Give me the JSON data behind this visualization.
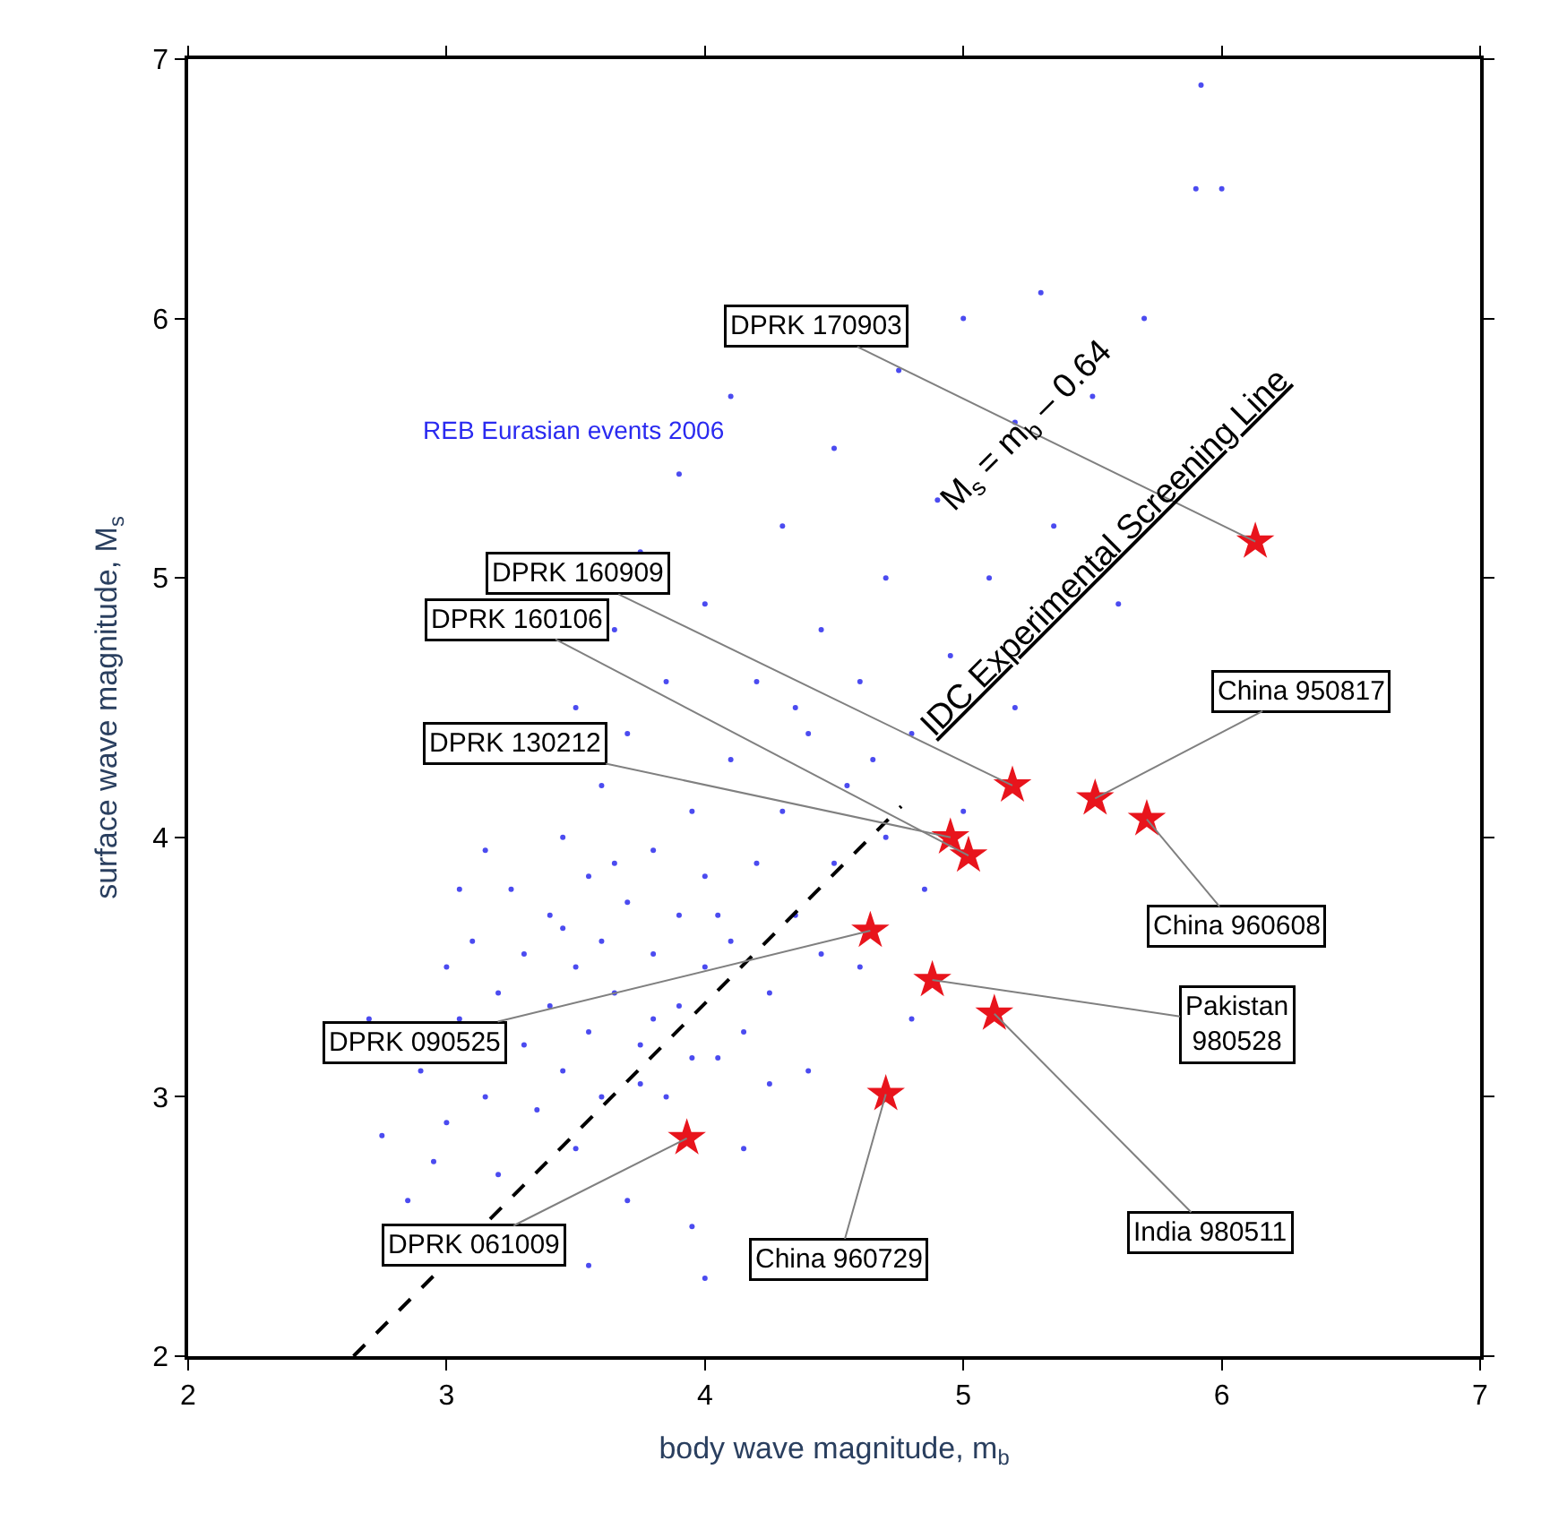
{
  "chart_data": {
    "type": "scatter",
    "xlabel": "body wave magnitude, m$_{b}$",
    "ylabel": "surface wave magnitude, M$_{s}$",
    "xlim": [
      2,
      7
    ],
    "ylim": [
      2,
      7
    ],
    "xticks": [
      2,
      3,
      4,
      5,
      6,
      7
    ],
    "yticks": [
      2,
      3,
      4,
      5,
      6,
      7
    ],
    "series": [
      {
        "color": "#4b4bf0",
        "marker": "circle",
        "x": [
          2.75,
          2.9,
          3.0,
          3.05,
          3.1,
          3.15,
          3.2,
          3.2,
          3.25,
          3.3,
          3.3,
          3.35,
          3.4,
          3.4,
          3.45,
          3.45,
          3.5,
          3.5,
          3.55,
          3.55,
          3.6,
          3.6,
          3.6,
          3.65,
          3.7,
          3.7,
          3.7,
          3.75,
          3.8,
          3.8,
          3.85,
          3.85,
          3.9,
          3.9,
          3.95,
          3.95,
          4.0,
          4.0,
          4.0,
          4.05,
          4.1,
          4.1,
          4.15,
          4.2,
          4.2,
          4.25,
          4.3,
          4.3,
          4.35,
          4.4,
          4.4,
          4.45,
          4.5,
          4.5,
          4.55,
          4.6,
          4.6,
          4.7,
          4.7,
          4.75,
          4.8,
          4.85,
          4.9,
          4.95,
          5.0,
          5.0,
          5.1,
          5.2,
          5.2,
          5.3,
          5.35,
          5.5,
          5.6,
          5.7,
          5.9,
          5.92,
          6.0,
          3.0,
          3.5,
          3.65,
          3.75,
          3.9,
          4.1,
          3.55,
          4.0,
          2.7,
          2.85,
          3.15,
          3.8,
          3.95,
          4.05,
          4.15,
          4.25,
          3.45,
          3.65,
          3.75,
          4.35,
          4.45,
          4.65,
          3.05,
          2.95,
          4.8
        ],
        "values": [
          2.85,
          3.1,
          2.9,
          3.3,
          3.6,
          3.0,
          3.4,
          2.7,
          3.8,
          3.2,
          3.55,
          2.95,
          3.7,
          3.35,
          4.0,
          3.1,
          3.5,
          2.8,
          3.85,
          3.25,
          3.6,
          4.2,
          3.0,
          3.4,
          3.75,
          2.6,
          4.4,
          3.2,
          3.55,
          3.95,
          3.0,
          4.6,
          3.7,
          3.35,
          4.1,
          2.5,
          3.5,
          3.85,
          4.9,
          3.15,
          4.3,
          3.6,
          2.8,
          3.9,
          4.6,
          3.4,
          4.1,
          5.2,
          3.7,
          4.4,
          3.1,
          4.8,
          3.9,
          5.5,
          4.2,
          3.5,
          4.6,
          5.0,
          4.0,
          5.8,
          4.4,
          3.8,
          5.3,
          4.7,
          6.0,
          4.1,
          5.0,
          5.6,
          4.5,
          6.1,
          5.2,
          5.7,
          4.9,
          6.0,
          6.5,
          6.9,
          6.5,
          3.5,
          4.5,
          4.8,
          5.1,
          5.4,
          5.7,
          2.35,
          2.3,
          3.3,
          2.6,
          3.95,
          3.3,
          3.15,
          3.7,
          3.25,
          3.05,
          3.65,
          3.9,
          3.05,
          4.5,
          3.55,
          4.3,
          3.8,
          2.75,
          3.3
        ]
      },
      {
        "type": "line",
        "color": "#000000",
        "marker": "none",
        "line_style": "dashed",
        "x": [
          2.64,
          4.76
        ],
        "values": [
          2,
          4.12
        ]
      },
      {
        "color": "#e8141c",
        "marker": "star",
        "x": [
          6.13,
          5.51,
          5.71,
          5.19,
          5.02,
          4.95,
          4.64,
          4.88,
          5.12,
          4.7,
          3.93
        ],
        "values": [
          5.14,
          4.15,
          4.07,
          4.2,
          3.93,
          4.0,
          3.64,
          3.45,
          3.32,
          3.01,
          2.84
        ]
      }
    ],
    "annotations": [
      {
        "text": "DPRK 170903",
        "x": 6.13,
        "y": 5.14
      },
      {
        "text": "China 950817",
        "x": 5.51,
        "y": 4.15
      },
      {
        "text": "China 960608",
        "x": 5.71,
        "y": 4.07
      },
      {
        "text": "DPRK 160909",
        "x": 5.19,
        "y": 4.2
      },
      {
        "text": "DPRK 160106",
        "x": 5.02,
        "y": 3.93
      },
      {
        "text": "DPRK 130212",
        "x": 4.95,
        "y": 4.0
      },
      {
        "text": "DPRK 090525",
        "x": 4.64,
        "y": 3.64
      },
      {
        "text": "Pakistan\n980528",
        "x": 4.88,
        "y": 3.45
      },
      {
        "text": "India 980511",
        "x": 5.12,
        "y": 3.32
      },
      {
        "text": "China 960729",
        "x": 4.7,
        "y": 3.01
      },
      {
        "text": "DPRK 061009",
        "x": 3.93,
        "y": 2.84
      },
      "REB Eurasian events 2006",
      "M$_{s}$ = m$_{b}$ – 0.64",
      "IDC Experimental Screening Line"
    ]
  }
}
